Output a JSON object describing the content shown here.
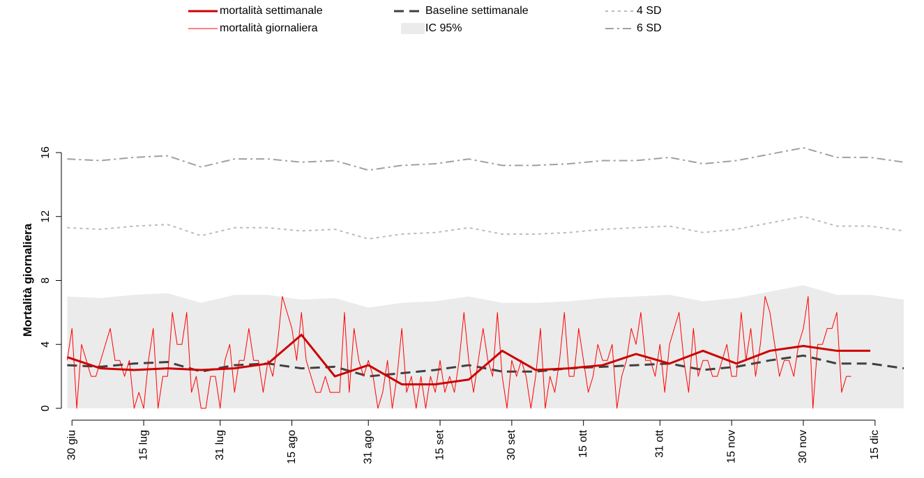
{
  "chart_data": {
    "type": "line",
    "y_label": "Mortalità giornaliera",
    "xlim": [
      -1.2,
      177.8
    ],
    "ylim": [
      0,
      16
    ],
    "yticks": [
      0,
      4,
      8,
      12,
      16
    ],
    "xticks": [
      {
        "value": 0,
        "label": "30 giu"
      },
      {
        "value": 15,
        "label": "15 lug"
      },
      {
        "value": 31,
        "label": "31 lug"
      },
      {
        "value": 46,
        "label": "15 ago"
      },
      {
        "value": 62,
        "label": "31 ago"
      },
      {
        "value": 77,
        "label": "15 set"
      },
      {
        "value": 92,
        "label": "30 set"
      },
      {
        "value": 107,
        "label": "15 ott"
      },
      {
        "value": 123,
        "label": "31 ott"
      },
      {
        "value": 138,
        "label": "15 nov"
      },
      {
        "value": 153,
        "label": "30 nov"
      },
      {
        "value": 168,
        "label": "15 dic"
      }
    ],
    "series": [
      {
        "name": "mortalità settimanale",
        "color": "#cc0000",
        "width": 3,
        "style": "solid",
        "x": [
          -1,
          6,
          13,
          20,
          27,
          34,
          41,
          48,
          55,
          62,
          69,
          76,
          83,
          90,
          97,
          104,
          111,
          118,
          125,
          132,
          139,
          146,
          153,
          160,
          167
        ],
        "values": [
          3.2,
          2.5,
          2.4,
          2.5,
          2.4,
          2.5,
          2.8,
          4.6,
          2.0,
          2.7,
          1.5,
          1.5,
          1.8,
          3.6,
          2.4,
          2.5,
          2.7,
          3.4,
          2.8,
          3.6,
          2.8,
          3.6,
          3.9,
          3.6,
          3.6
        ]
      },
      {
        "name": "mortalità giornaliera",
        "color": "#ff0000",
        "width": 1,
        "style": "solid",
        "x": [
          -1,
          0,
          1,
          2,
          3,
          4,
          5,
          6,
          7,
          8,
          9,
          10,
          11,
          12,
          13,
          14,
          15,
          16,
          17,
          18,
          19,
          20,
          21,
          22,
          23,
          24,
          25,
          26,
          27,
          28,
          29,
          30,
          31,
          32,
          33,
          34,
          35,
          36,
          37,
          38,
          39,
          40,
          41,
          42,
          43,
          44,
          45,
          46,
          47,
          48,
          49,
          50,
          51,
          52,
          53,
          54,
          55,
          56,
          57,
          58,
          59,
          60,
          61,
          62,
          63,
          64,
          65,
          66,
          67,
          68,
          69,
          70,
          71,
          72,
          73,
          74,
          75,
          76,
          77,
          78,
          79,
          80,
          81,
          82,
          83,
          84,
          85,
          86,
          87,
          88,
          89,
          90,
          91,
          92,
          93,
          94,
          95,
          96,
          97,
          98,
          99,
          100,
          101,
          102,
          103,
          104,
          105,
          106,
          107,
          108,
          109,
          110,
          111,
          112,
          113,
          114,
          115,
          116,
          117,
          118,
          119,
          120,
          121,
          122,
          123,
          124,
          125,
          126,
          127,
          128,
          129,
          130,
          131,
          132,
          133,
          134,
          135,
          136,
          137,
          138,
          139,
          140,
          141,
          142,
          143,
          144,
          145,
          146,
          147,
          148,
          149,
          150,
          151,
          152,
          153,
          154,
          155,
          156,
          157,
          158,
          159,
          160,
          161,
          162,
          163
        ],
        "values": [
          3,
          5,
          0,
          4,
          3,
          2,
          2,
          3,
          4,
          5,
          3,
          3,
          2,
          3,
          0,
          1,
          0,
          3,
          5,
          0,
          2,
          2,
          6,
          4,
          4,
          6,
          1,
          2,
          0,
          0,
          2,
          2,
          0,
          3,
          4,
          1,
          3,
          3,
          5,
          3,
          3,
          1,
          3,
          2,
          4,
          7,
          6,
          5,
          3,
          6,
          3,
          2,
          1,
          1,
          2,
          1,
          1,
          1,
          6,
          1,
          5,
          3,
          2,
          3,
          2,
          0,
          1,
          3,
          0,
          2,
          5,
          1,
          2,
          0,
          2,
          0,
          2,
          1,
          3,
          1,
          2,
          1,
          3,
          6,
          3,
          1,
          3,
          5,
          3,
          2,
          6,
          2,
          0,
          3,
          2,
          3,
          2,
          0,
          2,
          5,
          0,
          2,
          1,
          3,
          6,
          2,
          2,
          5,
          3,
          1,
          2,
          4,
          3,
          3,
          4,
          0,
          2,
          3,
          5,
          4,
          6,
          3,
          3,
          2,
          4,
          1,
          4,
          5,
          6,
          3,
          1,
          5,
          2,
          3,
          3,
          2,
          2,
          3,
          4,
          2,
          2,
          6,
          3,
          5,
          2,
          4,
          7,
          6,
          4,
          2,
          3,
          3,
          2,
          4,
          5,
          7,
          0,
          4,
          4,
          5,
          5,
          6,
          1,
          2,
          2
        ]
      },
      {
        "name": "Baseline settimanale",
        "color": "#404040",
        "width": 3,
        "style": "dashed",
        "x": [
          -1,
          6,
          13,
          20,
          27,
          34,
          41,
          48,
          55,
          62,
          69,
          76,
          83,
          90,
          97,
          104,
          111,
          118,
          125,
          132,
          139,
          146,
          153,
          160,
          167,
          174
        ],
        "values": [
          2.7,
          2.6,
          2.8,
          2.9,
          2.3,
          2.7,
          2.8,
          2.5,
          2.6,
          2.0,
          2.2,
          2.4,
          2.7,
          2.3,
          2.3,
          2.5,
          2.6,
          2.7,
          2.8,
          2.4,
          2.6,
          3.0,
          3.3,
          2.8,
          2.8,
          2.5
        ]
      },
      {
        "name": "IC 95%",
        "color": "#ebebeb",
        "style": "area",
        "x": [
          -1,
          6,
          13,
          20,
          27,
          34,
          41,
          48,
          55,
          62,
          69,
          76,
          83,
          90,
          97,
          104,
          111,
          118,
          125,
          132,
          139,
          146,
          153,
          160,
          167,
          174
        ],
        "values": [
          7.0,
          6.9,
          7.1,
          7.2,
          6.6,
          7.1,
          7.1,
          6.8,
          6.9,
          6.3,
          6.6,
          6.7,
          7.0,
          6.6,
          6.6,
          6.7,
          6.9,
          7.0,
          7.1,
          6.7,
          6.9,
          7.3,
          7.7,
          7.1,
          7.1,
          6.8
        ]
      },
      {
        "name": "4 SD",
        "color": "#bbbbbb",
        "width": 2,
        "style": "dotted",
        "x": [
          -1,
          6,
          13,
          20,
          27,
          34,
          41,
          48,
          55,
          62,
          69,
          76,
          83,
          90,
          97,
          104,
          111,
          118,
          125,
          132,
          139,
          146,
          153,
          160,
          167,
          174
        ],
        "values": [
          11.3,
          11.2,
          11.4,
          11.5,
          10.8,
          11.3,
          11.3,
          11.1,
          11.2,
          10.6,
          10.9,
          11.0,
          11.3,
          10.9,
          10.9,
          11.0,
          11.2,
          11.3,
          11.4,
          11.0,
          11.2,
          11.6,
          12.0,
          11.4,
          11.4,
          11.1
        ]
      },
      {
        "name": "6 SD",
        "color": "#a0a0a0",
        "width": 2,
        "style": "dashdot",
        "x": [
          -1,
          6,
          13,
          20,
          27,
          34,
          41,
          48,
          55,
          62,
          69,
          76,
          83,
          90,
          97,
          104,
          111,
          118,
          125,
          132,
          139,
          146,
          153,
          160,
          167,
          174
        ],
        "values": [
          15.6,
          15.5,
          15.7,
          15.8,
          15.1,
          15.6,
          15.6,
          15.4,
          15.5,
          14.9,
          15.2,
          15.3,
          15.6,
          15.2,
          15.2,
          15.3,
          15.5,
          15.5,
          15.7,
          15.3,
          15.5,
          15.9,
          16.3,
          15.7,
          15.7,
          15.4
        ]
      }
    ]
  }
}
